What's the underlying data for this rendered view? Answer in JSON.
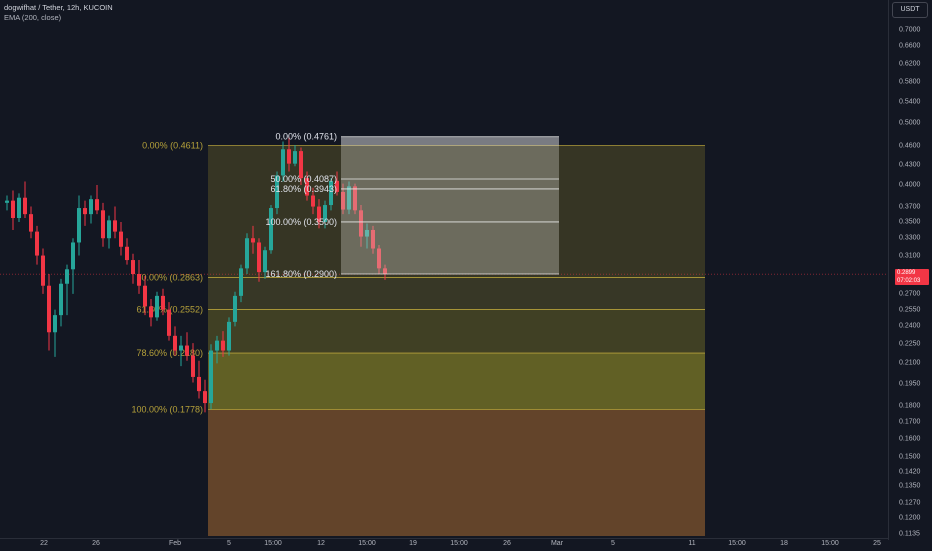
{
  "header": {
    "title": "dogwifhat / Tether, 12h, KUCOIN",
    "indicator": "EMA (200, close)"
  },
  "currency_button": "USDT",
  "price_axis_ticks": [
    "0.7000",
    "0.6600",
    "0.6200",
    "0.5800",
    "0.5400",
    "0.5000",
    "0.4600",
    "0.4300",
    "0.4000",
    "0.3700",
    "0.3500",
    "0.3300",
    "0.3100",
    "0.2900",
    "0.2700",
    "0.2550",
    "0.2400",
    "0.2250",
    "0.2100",
    "0.1950",
    "0.1800",
    "0.1700",
    "0.1600",
    "0.1500",
    "0.1420",
    "0.1350",
    "0.1270",
    "0.1200",
    "0.1135"
  ],
  "time_axis_ticks": [
    "22",
    "26",
    "Feb",
    "5",
    "15:00",
    "12",
    "15:00",
    "19",
    "15:00",
    "26",
    "Mar",
    "5",
    "11",
    "15:00",
    "18",
    "15:00",
    "25"
  ],
  "last_price": {
    "price": "0.2899",
    "countdown": "07:02:03"
  },
  "fib_large": [
    "0.00% (0.4611)",
    "50.00% (0.2863)",
    "61.80% (0.2552)",
    "78.60% (0.2180)",
    "100.00% (0.1778)"
  ],
  "fib_small": [
    "0.00% (0.4761)",
    "50.00% (0.4087)",
    "61.80% (0.3943)",
    "100.00% (0.3500)",
    "161.80% (0.2900)"
  ],
  "colors": {
    "bg": "#131722",
    "up": "#26a69a",
    "down": "#f23645",
    "grid": "#2a2e39",
    "fib_line": "#b5a13a",
    "fib_label": "#b5a13a"
  },
  "chart_data": {
    "type": "candlestick",
    "scale": "log",
    "ylim": [
      0.111,
      0.78
    ],
    "candles": [
      [
        0.375,
        0.385,
        0.365,
        0.378
      ],
      [
        0.378,
        0.392,
        0.34,
        0.355
      ],
      [
        0.355,
        0.388,
        0.35,
        0.382
      ],
      [
        0.382,
        0.405,
        0.355,
        0.36
      ],
      [
        0.36,
        0.37,
        0.33,
        0.338
      ],
      [
        0.338,
        0.345,
        0.3,
        0.31
      ],
      [
        0.31,
        0.318,
        0.27,
        0.278
      ],
      [
        0.278,
        0.29,
        0.22,
        0.235
      ],
      [
        0.235,
        0.255,
        0.215,
        0.25
      ],
      [
        0.25,
        0.285,
        0.24,
        0.28
      ],
      [
        0.28,
        0.3,
        0.25,
        0.295
      ],
      [
        0.295,
        0.33,
        0.27,
        0.325
      ],
      [
        0.325,
        0.385,
        0.31,
        0.368
      ],
      [
        0.368,
        0.378,
        0.345,
        0.36
      ],
      [
        0.36,
        0.385,
        0.348,
        0.38
      ],
      [
        0.38,
        0.4,
        0.36,
        0.365
      ],
      [
        0.365,
        0.375,
        0.32,
        0.33
      ],
      [
        0.33,
        0.358,
        0.318,
        0.352
      ],
      [
        0.352,
        0.37,
        0.33,
        0.338
      ],
      [
        0.338,
        0.35,
        0.31,
        0.32
      ],
      [
        0.32,
        0.33,
        0.3,
        0.305
      ],
      [
        0.305,
        0.312,
        0.28,
        0.29
      ],
      [
        0.29,
        0.305,
        0.27,
        0.278
      ],
      [
        0.278,
        0.288,
        0.25,
        0.258
      ],
      [
        0.258,
        0.265,
        0.24,
        0.248
      ],
      [
        0.248,
        0.272,
        0.245,
        0.268
      ],
      [
        0.268,
        0.275,
        0.25,
        0.255
      ],
      [
        0.255,
        0.262,
        0.228,
        0.232
      ],
      [
        0.232,
        0.24,
        0.216,
        0.22
      ],
      [
        0.22,
        0.232,
        0.208,
        0.224
      ],
      [
        0.224,
        0.235,
        0.212,
        0.216
      ],
      [
        0.216,
        0.226,
        0.196,
        0.2
      ],
      [
        0.2,
        0.212,
        0.185,
        0.19
      ],
      [
        0.19,
        0.198,
        0.176,
        0.182
      ],
      [
        0.182,
        0.225,
        0.178,
        0.22
      ],
      [
        0.22,
        0.232,
        0.21,
        0.228
      ],
      [
        0.228,
        0.236,
        0.215,
        0.22
      ],
      [
        0.22,
        0.248,
        0.216,
        0.244
      ],
      [
        0.244,
        0.272,
        0.24,
        0.268
      ],
      [
        0.268,
        0.3,
        0.262,
        0.296
      ],
      [
        0.296,
        0.336,
        0.29,
        0.33
      ],
      [
        0.33,
        0.345,
        0.312,
        0.325
      ],
      [
        0.325,
        0.33,
        0.282,
        0.292
      ],
      [
        0.292,
        0.32,
        0.285,
        0.316
      ],
      [
        0.316,
        0.372,
        0.312,
        0.368
      ],
      [
        0.368,
        0.42,
        0.36,
        0.414
      ],
      [
        0.414,
        0.468,
        0.405,
        0.455
      ],
      [
        0.455,
        0.476,
        0.42,
        0.432
      ],
      [
        0.432,
        0.462,
        0.428,
        0.452
      ],
      [
        0.452,
        0.458,
        0.4,
        0.41
      ],
      [
        0.41,
        0.42,
        0.378,
        0.385
      ],
      [
        0.385,
        0.396,
        0.36,
        0.37
      ],
      [
        0.37,
        0.38,
        0.342,
        0.35
      ],
      [
        0.35,
        0.378,
        0.342,
        0.372
      ],
      [
        0.372,
        0.41,
        0.365,
        0.406
      ],
      [
        0.406,
        0.42,
        0.385,
        0.39
      ],
      [
        0.39,
        0.402,
        0.36,
        0.366
      ],
      [
        0.366,
        0.405,
        0.36,
        0.398
      ],
      [
        0.398,
        0.402,
        0.36,
        0.365
      ],
      [
        0.365,
        0.372,
        0.32,
        0.332
      ],
      [
        0.332,
        0.348,
        0.318,
        0.34
      ],
      [
        0.34,
        0.345,
        0.312,
        0.318
      ],
      [
        0.318,
        0.322,
        0.29,
        0.296
      ],
      [
        0.296,
        0.3,
        0.284,
        0.29
      ]
    ]
  }
}
